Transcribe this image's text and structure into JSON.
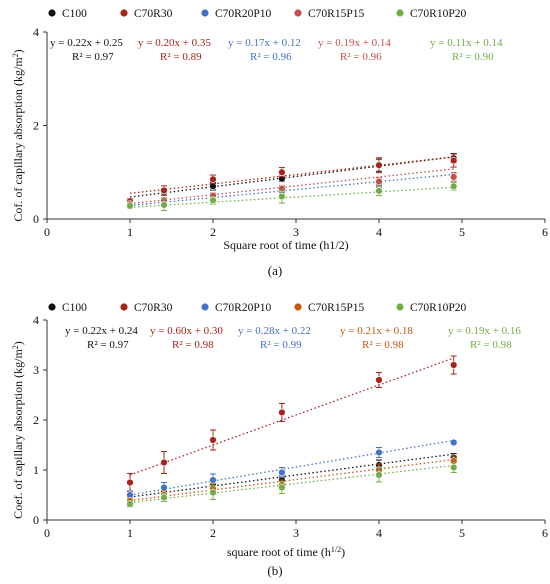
{
  "chart_data": [
    {
      "type": "scatter",
      "panel_label": "(a)",
      "xlabel": "Square root of time (h1/2)",
      "ylabel_parts": [
        "Cof. of capillary absorption (kg/m",
        "2",
        ")"
      ],
      "xlim": [
        0,
        6
      ],
      "ylim": [
        0,
        4
      ],
      "xticks": [
        "0",
        "1",
        "2",
        "3",
        "4",
        "5",
        "6"
      ],
      "yticks": [
        "0",
        "2",
        "4"
      ],
      "grid": false,
      "legend_position": "top",
      "series": [
        {
          "name": "C100",
          "color": "#111111",
          "x": [
            1,
            1.41,
            2,
            2.83,
            4,
            4.9
          ],
          "y": [
            0.37,
            0.58,
            0.7,
            0.86,
            1.15,
            1.3
          ],
          "err": [
            0.04,
            0.07,
            0.08,
            0.06,
            0.13,
            0.1
          ],
          "equation": "y = 0.22x + 0.25",
          "r2": "R² = 0.97",
          "fit": [
            0.22,
            0.25
          ]
        },
        {
          "name": "C70R30",
          "color": "#a8231c",
          "x": [
            1,
            1.41,
            2,
            2.83,
            4,
            4.9
          ],
          "y": [
            0.38,
            0.61,
            0.85,
            1.0,
            1.15,
            1.25
          ],
          "err": [
            0.06,
            0.1,
            0.09,
            0.1,
            0.16,
            0.14
          ],
          "equation": "y = 0.20x + 0.35",
          "r2": "R² = 0.89",
          "fit": [
            0.2,
            0.35
          ]
        },
        {
          "name": "C70R20P10",
          "color": "#4472c4",
          "x": [
            1,
            1.41,
            2,
            2.83,
            4,
            4.9
          ],
          "y": [
            0.3,
            0.35,
            0.45,
            0.6,
            0.75,
            0.92
          ],
          "err": [
            0.04,
            0.04,
            0.05,
            0.06,
            0.07,
            0.06
          ],
          "equation": "y = 0.17x + 0.12",
          "r2": "R² = 0.96",
          "fit": [
            0.17,
            0.12
          ]
        },
        {
          "name": "C70R15P15",
          "color": "#c0504d",
          "x": [
            1,
            1.41,
            2,
            2.83,
            4,
            4.9
          ],
          "y": [
            0.32,
            0.4,
            0.5,
            0.65,
            0.8,
            0.9
          ],
          "err": [
            0.05,
            0.06,
            0.06,
            0.07,
            0.08,
            0.09
          ],
          "equation": "y = 0.19x + 0.14",
          "r2": "R² = 0.96",
          "fit": [
            0.19,
            0.14
          ]
        },
        {
          "name": "C70R10P20",
          "color": "#70ad47",
          "x": [
            1,
            1.41,
            2,
            2.83,
            4,
            4.9
          ],
          "y": [
            0.28,
            0.3,
            0.4,
            0.48,
            0.6,
            0.7
          ],
          "err": [
            0.05,
            0.12,
            0.08,
            0.14,
            0.1,
            0.08
          ],
          "equation": "y = 0.11x + 0.14",
          "r2": "R² = 0.90",
          "fit": [
            0.11,
            0.14
          ]
        }
      ]
    },
    {
      "type": "scatter",
      "panel_label": "(b)",
      "xlabel_parts": [
        "square root of time (h",
        "1/2",
        ")"
      ],
      "ylabel_parts": [
        "Coef. of capillary absorption (kg/m",
        "2",
        ")"
      ],
      "xlim": [
        0,
        6
      ],
      "ylim": [
        0,
        4
      ],
      "xticks": [
        "0",
        "1",
        "2",
        "3",
        "4",
        "5",
        "6"
      ],
      "yticks": [
        "0",
        "1",
        "2",
        "3",
        "4"
      ],
      "grid": false,
      "legend_position": "top",
      "series": [
        {
          "name": "C100",
          "color": "#111111",
          "x": [
            1,
            1.41,
            2,
            2.83,
            4,
            4.9
          ],
          "y": [
            0.45,
            0.55,
            0.7,
            0.8,
            1.1,
            1.25
          ],
          "err": [
            0.05,
            0.06,
            0.08,
            0.08,
            0.1,
            0.08
          ],
          "equation": "y = 0.22x + 0.24",
          "r2": "R² = 0.97",
          "fit": [
            0.22,
            0.24
          ]
        },
        {
          "name": "C70R30",
          "color": "#a8231c",
          "x": [
            1,
            1.41,
            2,
            2.83,
            4,
            4.9
          ],
          "y": [
            0.75,
            1.15,
            1.6,
            2.15,
            2.8,
            3.1
          ],
          "err": [
            0.18,
            0.22,
            0.2,
            0.18,
            0.15,
            0.18
          ],
          "equation": "y = 0.60x + 0.30",
          "r2": "R² = 0.98",
          "fit": [
            0.6,
            0.3
          ]
        },
        {
          "name": "C70R20P10",
          "color": "#4472c4",
          "x": [
            1,
            1.41,
            2,
            2.83,
            4,
            4.9
          ],
          "y": [
            0.5,
            0.65,
            0.8,
            0.95,
            1.35,
            1.55
          ],
          "err": [
            0.08,
            0.1,
            0.12,
            0.1,
            0.1,
            0.04
          ],
          "equation": "y = 0.28x + 0.22",
          "r2": "R² = 0.99",
          "fit": [
            0.28,
            0.22
          ]
        },
        {
          "name": "C70R15P15",
          "color": "#c55a11",
          "x": [
            1,
            1.41,
            2,
            2.83,
            4,
            4.9
          ],
          "y": [
            0.38,
            0.5,
            0.62,
            0.7,
            1.0,
            1.18
          ],
          "err": [
            0.06,
            0.08,
            0.1,
            0.1,
            0.12,
            0.1
          ],
          "equation": "y = 0.21x + 0.18",
          "r2": "R² = 0.98",
          "fit": [
            0.21,
            0.18
          ]
        },
        {
          "name": "C70R10P20",
          "color": "#70ad47",
          "x": [
            1,
            1.41,
            2,
            2.83,
            4,
            4.9
          ],
          "y": [
            0.32,
            0.45,
            0.55,
            0.65,
            0.9,
            1.05
          ],
          "err": [
            0.06,
            0.08,
            0.14,
            0.12,
            0.14,
            0.1
          ],
          "equation": "y = 0.19x + 0.16",
          "r2": "R² = 0.98",
          "fit": [
            0.19,
            0.16
          ]
        }
      ]
    }
  ]
}
